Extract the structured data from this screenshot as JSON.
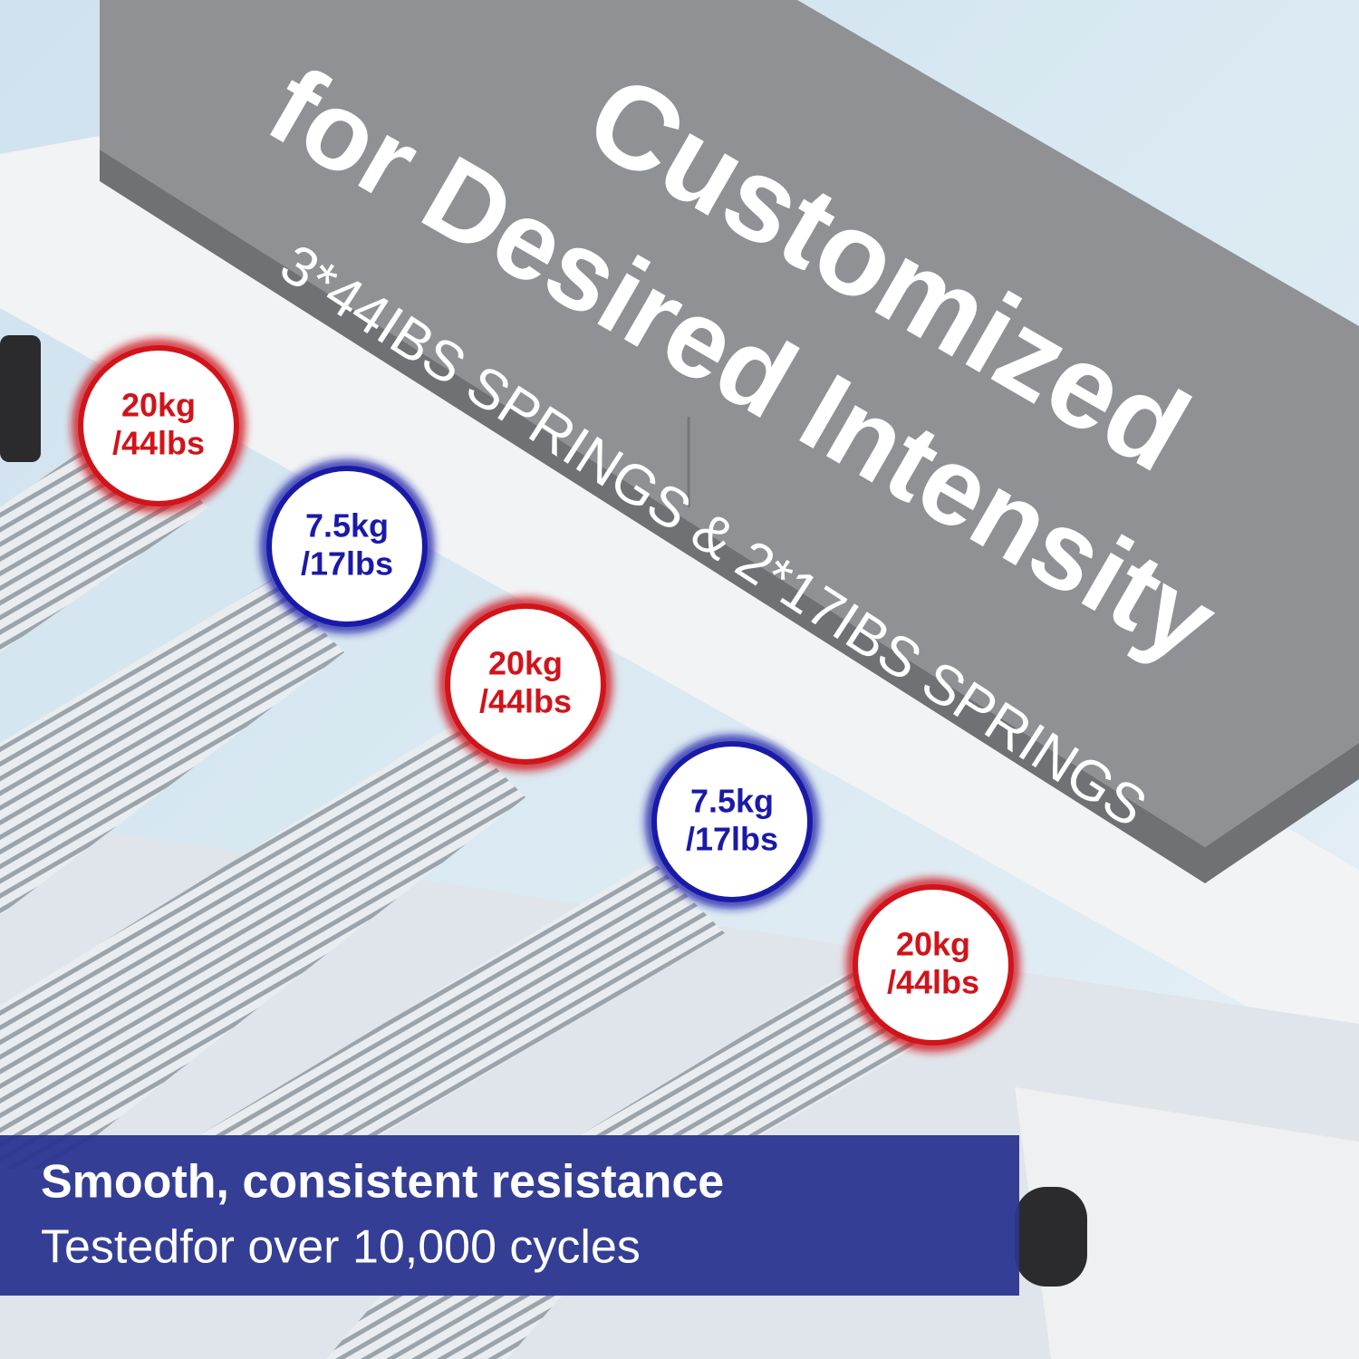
{
  "headline": {
    "line1": "Customized",
    "line2": "for Desired Intensity",
    "subline": "3*44IBS SPRINGS & 2*17IBS SPRINGS"
  },
  "badges": [
    {
      "weight": "20kg",
      "pounds": "/44lbs",
      "color": "#d0141a"
    },
    {
      "weight": "7.5kg",
      "pounds": "/17lbs",
      "color": "#1a1aa8"
    },
    {
      "weight": "20kg",
      "pounds": "/44lbs",
      "color": "#d0141a"
    },
    {
      "weight": "7.5kg",
      "pounds": "/17lbs",
      "color": "#1a1aa8"
    },
    {
      "weight": "20kg",
      "pounds": "/44lbs",
      "color": "#d0141a"
    }
  ],
  "banner": {
    "title": "Smooth, consistent resistance",
    "subtitle": "Testedfor over 10,000 cycles"
  }
}
